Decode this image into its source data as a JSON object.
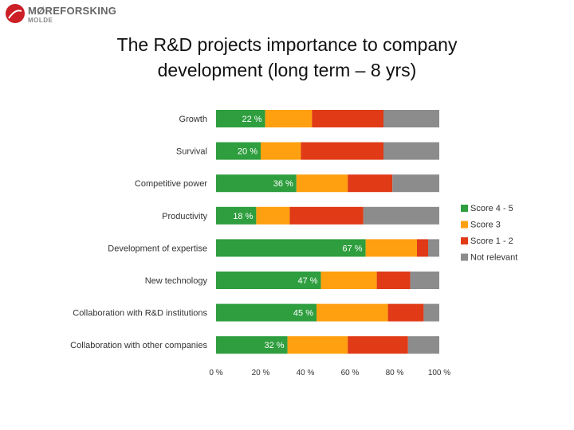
{
  "logo": {
    "name": "MØREFORSKING",
    "sub": "MOLDE"
  },
  "slide": {
    "title_line1": "The R&D projects importance to company",
    "title_line2": "development (long term – 8 yrs)"
  },
  "chart_data": {
    "type": "bar",
    "orientation": "horizontal",
    "stacked": true,
    "percent_stacked": true,
    "title": "",
    "xlabel": "",
    "ylabel": "",
    "xlim": [
      0,
      100
    ],
    "grid": false,
    "legend_position": "right",
    "categories": [
      "Growth",
      "Survival",
      "Competitive power",
      "Productivity",
      "Development of expertise",
      "New technology",
      "Collaboration  with R&D institutions",
      "Collaboration with other companies"
    ],
    "x_ticks": [
      0,
      20,
      40,
      60,
      80,
      100
    ],
    "x_tick_labels": [
      "0 %",
      "20 %",
      "40 %",
      "60 %",
      "80 %",
      "100 %"
    ],
    "series": [
      {
        "name": "Score 4 - 5",
        "color": "#2e9e3e",
        "values": [
          22,
          20,
          36,
          18,
          67,
          47,
          45,
          32
        ],
        "labels": [
          "22 %",
          "20 %",
          "36 %",
          "18 %",
          "67 %",
          "47 %",
          "45 %",
          "32 %"
        ]
      },
      {
        "name": "Score 3",
        "color": "#ffa010",
        "values": [
          21,
          18,
          23,
          15,
          23,
          25,
          32,
          27
        ]
      },
      {
        "name": "Score 1 - 2",
        "color": "#e03a17",
        "values": [
          32,
          37,
          20,
          33,
          5,
          15,
          16,
          27
        ]
      },
      {
        "name": "Not relevant",
        "color": "#8c8c8c",
        "values": [
          25,
          25,
          21,
          34,
          5,
          13,
          7,
          14
        ]
      }
    ]
  }
}
